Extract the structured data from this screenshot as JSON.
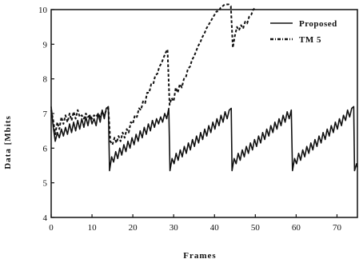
{
  "chart_data": {
    "type": "line",
    "title": "",
    "xlabel": "Frames",
    "ylabel": "Data [Mbits",
    "xlim": [
      0,
      75
    ],
    "ylim": [
      4,
      10
    ],
    "xticks": [
      0,
      10,
      20,
      30,
      40,
      50,
      60,
      70
    ],
    "yticks": [
      4,
      5,
      6,
      7,
      8,
      9,
      10
    ],
    "grid": false,
    "legend_position": "top-right",
    "series": [
      {
        "name": "Proposed",
        "style": "solid",
        "color": "#111111",
        "x": [
          0,
          0.5,
          1,
          1.5,
          2,
          2.5,
          3,
          3.5,
          4,
          4.5,
          5,
          5.5,
          6,
          6.5,
          7,
          7.5,
          8,
          8.5,
          9,
          9.5,
          10,
          10.5,
          11,
          11.5,
          12,
          12.5,
          13,
          13.5,
          14,
          14.3,
          14.8,
          15.3,
          15.8,
          16.3,
          16.8,
          17.3,
          17.8,
          18.3,
          18.8,
          19.3,
          19.8,
          20.3,
          20.8,
          21.3,
          21.8,
          22.3,
          22.8,
          23.3,
          23.8,
          24.3,
          24.8,
          25.3,
          25.8,
          26.3,
          26.8,
          27.3,
          27.8,
          28.3,
          28.8,
          29.1,
          29.6,
          30.1,
          30.6,
          31.1,
          31.6,
          32.1,
          32.6,
          33.1,
          33.6,
          34.1,
          34.6,
          35.1,
          35.6,
          36.1,
          36.6,
          37.1,
          37.6,
          38.1,
          38.6,
          39.1,
          39.6,
          40.1,
          40.6,
          41.1,
          41.6,
          42.1,
          42.6,
          43.1,
          43.6,
          44.1,
          44.3,
          44.8,
          45.3,
          45.8,
          46.3,
          46.8,
          47.3,
          47.8,
          48.3,
          48.8,
          49.3,
          49.8,
          50.3,
          50.8,
          51.3,
          51.8,
          52.3,
          52.8,
          53.3,
          53.8,
          54.3,
          54.8,
          55.3,
          55.8,
          56.3,
          56.8,
          57.3,
          57.8,
          58.3,
          58.8,
          59.1,
          59.6,
          60.1,
          60.6,
          61.1,
          61.6,
          62.1,
          62.6,
          63.1,
          63.6,
          64.1,
          64.6,
          65.1,
          65.6,
          66.1,
          66.6,
          67.1,
          67.6,
          68.1,
          68.6,
          69.1,
          69.6,
          70.1,
          70.6,
          71.1,
          71.6,
          72.1,
          72.6,
          73.1,
          73.6,
          74.1,
          74.3,
          74.8,
          75
        ],
        "y": [
          7.2,
          6.6,
          6.2,
          6.45,
          6.3,
          6.55,
          6.35,
          6.6,
          6.4,
          6.7,
          6.45,
          6.75,
          6.5,
          6.8,
          6.55,
          6.85,
          6.6,
          6.9,
          6.65,
          6.95,
          6.7,
          6.85,
          6.65,
          7.0,
          6.75,
          7.1,
          6.85,
          7.15,
          7.2,
          5.35,
          5.75,
          5.6,
          5.9,
          5.7,
          6.0,
          5.8,
          6.1,
          5.9,
          6.2,
          6.0,
          6.3,
          6.1,
          6.4,
          6.2,
          6.5,
          6.3,
          6.6,
          6.4,
          6.7,
          6.5,
          6.8,
          6.6,
          6.85,
          6.7,
          6.9,
          6.75,
          7.0,
          6.85,
          7.15,
          5.35,
          5.7,
          5.55,
          5.85,
          5.65,
          5.95,
          5.75,
          6.05,
          5.85,
          6.15,
          5.95,
          6.25,
          6.05,
          6.35,
          6.15,
          6.45,
          6.25,
          6.55,
          6.35,
          6.65,
          6.45,
          6.75,
          6.55,
          6.85,
          6.65,
          6.95,
          6.75,
          7.05,
          6.85,
          7.1,
          7.15,
          5.35,
          5.7,
          5.55,
          5.85,
          5.65,
          5.95,
          5.75,
          6.05,
          5.85,
          6.15,
          5.95,
          6.25,
          6.05,
          6.35,
          6.15,
          6.45,
          6.25,
          6.55,
          6.35,
          6.65,
          6.45,
          6.75,
          6.55,
          6.85,
          6.65,
          6.95,
          6.75,
          7.05,
          6.85,
          7.1,
          5.35,
          5.7,
          5.55,
          5.85,
          5.65,
          5.95,
          5.75,
          6.05,
          5.85,
          6.15,
          5.95,
          6.25,
          6.05,
          6.35,
          6.15,
          6.45,
          6.25,
          6.55,
          6.35,
          6.65,
          6.45,
          6.75,
          6.55,
          6.85,
          6.65,
          6.95,
          6.8,
          7.1,
          6.9,
          7.15,
          7.2,
          5.35,
          5.55,
          5.45
        ]
      },
      {
        "name": "TM 5",
        "style": "dashed",
        "color": "#111111",
        "x": [
          0,
          0.5,
          1,
          1.5,
          2,
          2.5,
          3,
          3.5,
          4,
          4.5,
          5,
          5.5,
          6,
          6.5,
          7,
          7.5,
          8,
          8.5,
          9,
          9.5,
          10,
          10.5,
          11,
          11.5,
          12,
          12.5,
          13,
          13.5,
          14,
          14.5,
          15,
          15.5,
          16,
          16.5,
          17,
          17.5,
          18,
          18.5,
          19,
          19.5,
          20,
          20.5,
          21,
          21.5,
          22,
          22.5,
          23,
          23.5,
          24,
          24.5,
          25,
          25.5,
          26,
          26.5,
          27,
          27.5,
          28,
          28.5,
          29,
          29.5,
          30,
          30.5,
          31,
          31.5,
          32,
          32.5,
          33,
          33.5,
          34,
          34.5,
          35,
          35.5,
          36,
          36.5,
          37,
          37.5,
          38,
          38.5,
          39,
          39.5,
          40,
          40.5,
          41,
          41.5,
          42,
          42.5,
          43,
          43.5,
          44,
          44.5,
          45,
          45.5,
          46,
          46.5,
          47,
          47.5,
          48,
          48.5,
          49,
          49.5,
          50
        ],
        "y": [
          7.1,
          6.8,
          6.4,
          6.75,
          6.55,
          6.9,
          6.7,
          6.95,
          6.75,
          7.0,
          6.8,
          7.05,
          6.85,
          7.1,
          6.9,
          6.95,
          6.85,
          7.0,
          6.9,
          6.95,
          6.85,
          6.95,
          6.9,
          7.0,
          6.9,
          7.05,
          6.95,
          7.1,
          7.15,
          6.2,
          6.1,
          6.3,
          6.15,
          6.35,
          6.2,
          6.45,
          6.3,
          6.55,
          6.45,
          6.75,
          6.7,
          6.95,
          6.9,
          7.15,
          7.1,
          7.35,
          7.3,
          7.6,
          7.6,
          7.85,
          7.85,
          8.1,
          8.15,
          8.35,
          8.45,
          8.6,
          8.75,
          8.85,
          7.25,
          7.45,
          7.35,
          7.75,
          7.6,
          7.85,
          7.75,
          8.0,
          8.05,
          8.3,
          8.35,
          8.55,
          8.65,
          8.8,
          8.95,
          9.05,
          9.2,
          9.3,
          9.45,
          9.55,
          9.65,
          9.75,
          9.85,
          9.95,
          9.95,
          10.05,
          10.1,
          10.15,
          10.15,
          10.15,
          10.1,
          8.9,
          9.25,
          9.5,
          9.4,
          9.55,
          9.45,
          9.65,
          9.6,
          9.8,
          9.85,
          10.0,
          10.05
        ]
      }
    ]
  }
}
